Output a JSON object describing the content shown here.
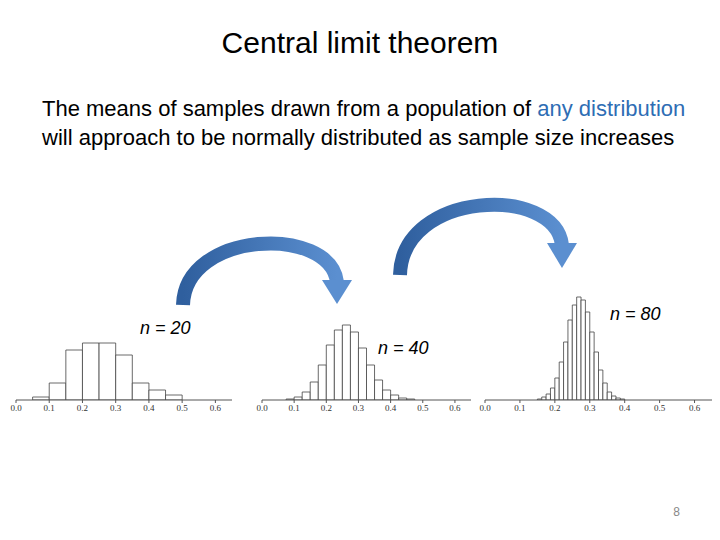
{
  "slide": {
    "title": "Central limit theorem",
    "text": "The means of samples drawn from a population of any distribution will approach to be normally distributed as sample size increases",
    "highlight": "any distribution",
    "page": 8
  },
  "chart_data": [
    {
      "type": "histogram",
      "label": "n = 20",
      "bins": [
        0.05,
        0.1,
        0.15,
        0.2,
        0.25,
        0.3,
        0.35,
        0.4,
        0.45,
        0.5
      ],
      "values": [
        3,
        17,
        50,
        57,
        57,
        45,
        17,
        10,
        5
      ],
      "color": "#ffffff",
      "xlim": [
        0,
        0.65
      ],
      "xticks": [
        {
          "value": 0,
          "label": "0.0"
        },
        0.1,
        0.2,
        0.3,
        0.4,
        0.5,
        0.6
      ],
      "ylim": [
        0,
        110
      ],
      "grid": false,
      "tick_labels": "x"
    },
    {
      "type": "histogram",
      "label": "n = 40",
      "bins": [
        0.075,
        0.1,
        0.125,
        0.15,
        0.175,
        0.2,
        0.225,
        0.25,
        0.275,
        0.3,
        0.325,
        0.35,
        0.375,
        0.4,
        0.425,
        0.45,
        0.475
      ],
      "values": [
        1,
        3,
        8,
        18,
        35,
        55,
        70,
        75,
        68,
        52,
        35,
        20,
        10,
        5,
        2,
        1
      ],
      "color": "#ffffff",
      "xlim": [
        0,
        0.65
      ],
      "xticks": [
        {
          "value": 0,
          "label": "0.0"
        },
        0.1,
        0.2,
        0.3,
        0.4,
        0.5,
        0.6
      ],
      "ylim": [
        0,
        110
      ],
      "grid": false,
      "tick_labels": "x"
    },
    {
      "type": "histogram",
      "label": "n = 80",
      "bins": [
        0.15,
        0.1625,
        0.175,
        0.1875,
        0.2,
        0.2125,
        0.225,
        0.2375,
        0.25,
        0.2625,
        0.275,
        0.2875,
        0.3,
        0.3125,
        0.325,
        0.3375,
        0.35,
        0.3625,
        0.375,
        0.3875,
        0.4
      ],
      "values": [
        1,
        3,
        6,
        12,
        22,
        38,
        58,
        80,
        95,
        103,
        100,
        88,
        68,
        48,
        30,
        17,
        8,
        4,
        2,
        1
      ],
      "color": "#ffffff",
      "xlim": [
        0,
        0.65
      ],
      "xticks": [
        {
          "value": 0,
          "label": "0.0"
        },
        0.1,
        0.2,
        0.3,
        0.4,
        0.5,
        0.6
      ],
      "ylim": [
        0,
        110
      ],
      "grid": false,
      "tick_labels": "x"
    }
  ]
}
